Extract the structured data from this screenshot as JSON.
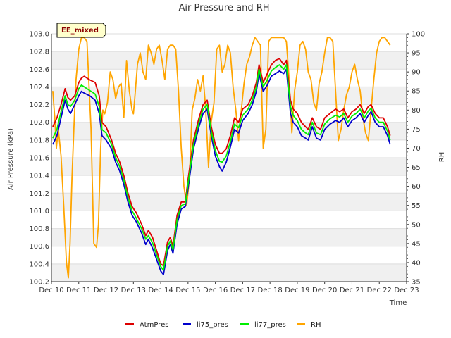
{
  "chart_data": {
    "type": "line",
    "title": "Air Pressure and RH",
    "xlabel": "Time",
    "ylabel": "Air Pressure (kPa)",
    "y2label": "RH",
    "site_badge": "EE_mixed",
    "x_ticks": [
      "Dec 10",
      "Dec 11",
      "Dec 12",
      "Dec 13",
      "Dec 14",
      "Dec 15",
      "Dec 16",
      "Dec 17",
      "Dec 18",
      "Dec 19",
      "Dec 20",
      "Dec 21",
      "Dec 22",
      "Dec 23"
    ],
    "xlim": [
      10,
      23
    ],
    "ylim": [
      100.2,
      103.0
    ],
    "y_ticks": [
      "100.2",
      "100.4",
      "100.6",
      "100.8",
      "101.0",
      "101.2",
      "101.4",
      "101.6",
      "101.8",
      "102.0",
      "102.2",
      "102.4",
      "102.6",
      "102.8",
      "103.0"
    ],
    "y2lim": [
      35,
      100
    ],
    "y2_ticks": [
      "35",
      "40",
      "45",
      "50",
      "55",
      "60",
      "65",
      "70",
      "75",
      "80",
      "85",
      "90",
      "95",
      "100"
    ],
    "grid": true,
    "legend_position": "bottom",
    "series": [
      {
        "name": "AtmPres",
        "color": "#dd0000",
        "axis": "left",
        "x": [
          10.05,
          10.2,
          10.35,
          10.5,
          10.6,
          10.7,
          10.85,
          11.0,
          11.1,
          11.2,
          11.4,
          11.6,
          11.75,
          11.85,
          12.0,
          12.2,
          12.35,
          12.5,
          12.65,
          12.8,
          12.95,
          13.1,
          13.3,
          13.45,
          13.55,
          13.7,
          13.85,
          14.0,
          14.1,
          14.25,
          14.35,
          14.45,
          14.6,
          14.75,
          14.9,
          15.0,
          15.2,
          15.4,
          15.55,
          15.7,
          15.85,
          16.0,
          16.15,
          16.25,
          16.4,
          16.55,
          16.7,
          16.85,
          17.0,
          17.2,
          17.35,
          17.5,
          17.6,
          17.75,
          17.9,
          18.05,
          18.2,
          18.35,
          18.5,
          18.6,
          18.75,
          18.85,
          19.0,
          19.15,
          19.3,
          19.4,
          19.55,
          19.7,
          19.85,
          20.0,
          20.2,
          20.4,
          20.55,
          20.7,
          20.85,
          21.0,
          21.15,
          21.3,
          21.45,
          21.6,
          21.7,
          21.85,
          22.0,
          22.15,
          22.3,
          22.4
        ],
        "values": [
          101.95,
          102.05,
          102.2,
          102.38,
          102.28,
          102.25,
          102.3,
          102.45,
          102.5,
          102.52,
          102.48,
          102.45,
          102.3,
          102.0,
          101.95,
          101.8,
          101.65,
          101.55,
          101.4,
          101.2,
          101.05,
          100.98,
          100.85,
          100.72,
          100.78,
          100.7,
          100.55,
          100.4,
          100.38,
          100.65,
          100.7,
          100.6,
          100.95,
          101.1,
          101.1,
          101.35,
          101.8,
          102.05,
          102.2,
          102.25,
          101.95,
          101.75,
          101.65,
          101.65,
          101.7,
          101.85,
          102.05,
          102.0,
          102.15,
          102.2,
          102.3,
          102.45,
          102.65,
          102.45,
          102.55,
          102.65,
          102.7,
          102.72,
          102.65,
          102.7,
          102.25,
          102.15,
          102.1,
          102.0,
          101.95,
          101.92,
          102.05,
          101.95,
          101.92,
          102.05,
          102.1,
          102.15,
          102.12,
          102.15,
          102.05,
          102.12,
          102.15,
          102.2,
          102.1,
          102.18,
          102.2,
          102.1,
          102.05,
          102.05,
          101.95,
          101.85
        ]
      },
      {
        "name": "li75_pres",
        "color": "#0000cc",
        "axis": "left",
        "x": [
          10.05,
          10.2,
          10.35,
          10.5,
          10.6,
          10.7,
          10.85,
          11.0,
          11.1,
          11.2,
          11.4,
          11.6,
          11.75,
          11.85,
          12.0,
          12.2,
          12.35,
          12.5,
          12.65,
          12.8,
          12.95,
          13.1,
          13.3,
          13.45,
          13.55,
          13.7,
          13.85,
          14.0,
          14.1,
          14.25,
          14.35,
          14.45,
          14.6,
          14.75,
          14.9,
          15.0,
          15.2,
          15.4,
          15.55,
          15.7,
          15.85,
          16.0,
          16.15,
          16.25,
          16.4,
          16.55,
          16.7,
          16.85,
          17.0,
          17.2,
          17.35,
          17.5,
          17.6,
          17.75,
          17.9,
          18.05,
          18.2,
          18.35,
          18.5,
          18.6,
          18.75,
          18.85,
          19.0,
          19.15,
          19.3,
          19.4,
          19.55,
          19.7,
          19.85,
          20.0,
          20.2,
          20.4,
          20.55,
          20.7,
          20.85,
          21.0,
          21.15,
          21.3,
          21.45,
          21.6,
          21.7,
          21.85,
          22.0,
          22.15,
          22.3,
          22.4
        ],
        "values": [
          101.75,
          101.85,
          102.05,
          102.25,
          102.15,
          102.1,
          102.2,
          102.3,
          102.35,
          102.33,
          102.3,
          102.25,
          102.1,
          101.85,
          101.8,
          101.7,
          101.55,
          101.45,
          101.3,
          101.1,
          100.95,
          100.88,
          100.75,
          100.62,
          100.68,
          100.58,
          100.45,
          100.32,
          100.28,
          100.55,
          100.62,
          100.52,
          100.85,
          101.02,
          101.05,
          101.25,
          101.7,
          101.95,
          102.1,
          102.15,
          101.85,
          101.62,
          101.5,
          101.45,
          101.55,
          101.72,
          101.92,
          101.88,
          102.02,
          102.1,
          102.2,
          102.35,
          102.55,
          102.35,
          102.42,
          102.52,
          102.55,
          102.58,
          102.55,
          102.6,
          102.1,
          102.0,
          101.95,
          101.85,
          101.82,
          101.8,
          101.95,
          101.82,
          101.8,
          101.92,
          101.98,
          102.02,
          102.0,
          102.05,
          101.95,
          102.02,
          102.05,
          102.1,
          102.0,
          102.08,
          102.12,
          102.0,
          101.95,
          101.95,
          101.85,
          101.75
        ]
      },
      {
        "name": "li77_pres",
        "color": "#00ee00",
        "axis": "left",
        "x": [
          10.05,
          10.2,
          10.35,
          10.5,
          10.6,
          10.7,
          10.85,
          11.0,
          11.1,
          11.2,
          11.4,
          11.6,
          11.75,
          11.85,
          12.0,
          12.2,
          12.35,
          12.5,
          12.65,
          12.8,
          12.95,
          13.1,
          13.3,
          13.45,
          13.55,
          13.7,
          13.85,
          14.0,
          14.1,
          14.25,
          14.35,
          14.45,
          14.6,
          14.75,
          14.9,
          15.0,
          15.2,
          15.4,
          15.55,
          15.7,
          15.85,
          16.0,
          16.15,
          16.25,
          16.4,
          16.55,
          16.7,
          16.85,
          17.0,
          17.2,
          17.35,
          17.5,
          17.6,
          17.75,
          17.9,
          18.05,
          18.2,
          18.35,
          18.5,
          18.6,
          18.75,
          18.85,
          19.0,
          19.15,
          19.3,
          19.4,
          19.55,
          19.7,
          19.85,
          20.0,
          20.2,
          20.4,
          20.55,
          20.7,
          20.85,
          21.0,
          21.15,
          21.3,
          21.45,
          21.6,
          21.7,
          21.85,
          22.0,
          22.15,
          22.3,
          22.4
        ],
        "values": [
          101.82,
          101.92,
          102.12,
          102.3,
          102.2,
          102.18,
          102.25,
          102.38,
          102.42,
          102.4,
          102.36,
          102.32,
          102.18,
          101.92,
          101.88,
          101.75,
          101.6,
          101.5,
          101.35,
          101.15,
          101.0,
          100.92,
          100.8,
          100.68,
          100.72,
          100.64,
          100.5,
          100.37,
          100.33,
          100.6,
          100.66,
          100.56,
          100.9,
          101.06,
          101.08,
          101.3,
          101.75,
          102.0,
          102.15,
          102.2,
          101.9,
          101.68,
          101.56,
          101.55,
          101.62,
          101.78,
          101.98,
          101.94,
          102.08,
          102.15,
          102.25,
          102.4,
          102.6,
          102.4,
          102.48,
          102.58,
          102.62,
          102.65,
          102.6,
          102.65,
          102.18,
          102.08,
          102.02,
          101.92,
          101.88,
          101.86,
          102.0,
          101.88,
          101.86,
          101.98,
          102.04,
          102.08,
          102.06,
          102.1,
          102.0,
          102.07,
          102.1,
          102.15,
          102.05,
          102.13,
          102.16,
          102.05,
          102.0,
          102.0,
          101.9,
          101.8
        ]
      },
      {
        "name": "RH",
        "color": "#ffa500",
        "axis": "right",
        "x": [
          10.05,
          10.12,
          10.18,
          10.25,
          10.35,
          10.45,
          10.55,
          10.62,
          10.68,
          10.75,
          10.82,
          10.9,
          11.0,
          11.1,
          11.2,
          11.3,
          11.45,
          11.55,
          11.65,
          11.72,
          11.8,
          11.88,
          11.95,
          12.05,
          12.15,
          12.25,
          12.35,
          12.45,
          12.55,
          12.65,
          12.75,
          12.85,
          12.95,
          13.0,
          13.05,
          13.15,
          13.25,
          13.35,
          13.45,
          13.55,
          13.65,
          13.75,
          13.85,
          13.95,
          14.05,
          14.15,
          14.25,
          14.35,
          14.45,
          14.55,
          14.65,
          14.75,
          14.85,
          14.95,
          15.05,
          15.15,
          15.25,
          15.35,
          15.45,
          15.55,
          15.65,
          15.75,
          15.85,
          15.95,
          16.05,
          16.15,
          16.25,
          16.35,
          16.45,
          16.55,
          16.65,
          16.75,
          16.85,
          16.95,
          17.05,
          17.15,
          17.25,
          17.35,
          17.45,
          17.55,
          17.65,
          17.75,
          17.85,
          17.95,
          18.05,
          18.2,
          18.35,
          18.5,
          18.6,
          18.7,
          18.8,
          18.9,
          19.0,
          19.1,
          19.2,
          19.3,
          19.4,
          19.5,
          19.6,
          19.7,
          19.8,
          19.9,
          20.0,
          20.1,
          20.2,
          20.3,
          20.4,
          20.5,
          20.6,
          20.7,
          20.8,
          20.9,
          21.0,
          21.1,
          21.2,
          21.3,
          21.4,
          21.5,
          21.6,
          21.7,
          21.8,
          21.9,
          22.0,
          22.1,
          22.2,
          22.3,
          22.4
        ],
        "values": [
          85,
          78,
          70,
          75,
          68,
          55,
          40,
          36,
          45,
          62,
          75,
          88,
          96,
          99,
          99,
          98,
          75,
          45,
          44,
          50,
          70,
          80,
          79,
          82,
          90,
          88,
          83,
          86,
          87,
          78,
          93,
          85,
          80,
          79,
          83,
          92,
          95,
          90,
          88,
          97,
          95,
          92,
          96,
          97,
          93,
          88,
          96,
          97,
          97,
          96,
          85,
          70,
          60,
          55,
          62,
          80,
          83,
          88,
          85,
          89,
          80,
          65,
          77,
          82,
          96,
          97,
          90,
          92,
          97,
          95,
          86,
          80,
          72,
          80,
          87,
          92,
          94,
          97,
          99,
          98,
          97,
          70,
          75,
          98,
          99,
          99,
          99,
          99,
          98,
          88,
          74,
          85,
          90,
          97,
          98,
          96,
          90,
          88,
          82,
          80,
          87,
          90,
          95,
          99,
          99,
          98,
          85,
          72,
          75,
          80,
          84,
          86,
          90,
          92,
          88,
          85,
          78,
          74,
          72,
          80,
          88,
          95,
          98,
          99,
          99,
          98,
          97
        ]
      }
    ]
  }
}
